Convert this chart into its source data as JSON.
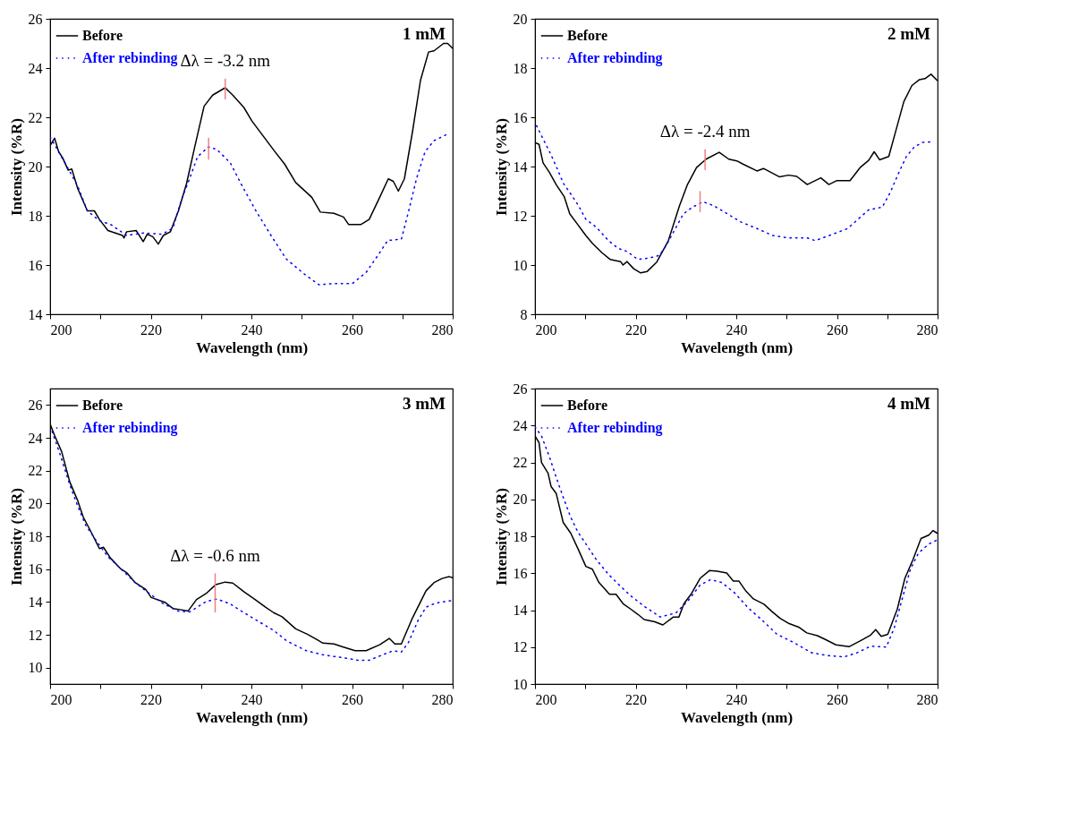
{
  "chart_data": [
    {
      "type": "line",
      "title": "1 mM",
      "xlabel": "Wavelength (nm)",
      "ylabel": "Intensity (%R)",
      "xlim": [
        200,
        280
      ],
      "ylim": [
        14,
        26
      ],
      "xticks": [
        200,
        {
          "value": 210,
          "label": null
        },
        220,
        {
          "value": 230,
          "label": null
        },
        240,
        {
          "value": 250,
          "label": null
        },
        260,
        {
          "value": 270,
          "label": null
        },
        280
      ],
      "yticks": [
        14,
        16,
        18,
        20,
        22,
        24,
        26
      ],
      "grid": false,
      "legend": "top left",
      "annotations": [
        {
          "text": "Δλ = -3.2 nm",
          "x": 234.8,
          "y": 23.55
        }
      ],
      "series": [
        {
          "name": "Before",
          "color": "#000000",
          "line_style": "solid",
          "x": [
            200,
            200.9,
            201.7,
            202.5,
            203.6,
            204.3,
            205.5,
            207.4,
            208.8,
            209.8,
            211.5,
            214.4,
            214.7,
            215.2,
            217.1,
            218.5,
            219.3,
            220.4,
            221.5,
            222.5,
            223.9,
            225.5,
            227.1,
            228.8,
            230.6,
            232.3,
            234.8,
            236.3,
            238.5,
            240.1,
            242.3,
            244.5,
            246.6,
            248.8,
            250.4,
            252.0,
            253.7,
            256.4,
            258.3,
            259.3,
            261.8,
            263.4,
            265.5,
            267.2,
            268.2,
            269.2,
            270.4,
            272.0,
            273.6,
            275.2,
            276.3,
            278.2,
            279.0,
            280
          ],
          "values": [
            20.85,
            21.15,
            20.6,
            20.35,
            19.85,
            19.9,
            19.1,
            18.2,
            18.2,
            17.85,
            17.4,
            17.2,
            17.1,
            17.35,
            17.4,
            16.95,
            17.25,
            17.15,
            16.85,
            17.2,
            17.35,
            18.2,
            19.3,
            20.85,
            22.45,
            22.9,
            23.2,
            22.9,
            22.4,
            21.85,
            21.25,
            20.65,
            20.1,
            19.35,
            19.05,
            18.75,
            18.15,
            18.1,
            17.95,
            17.65,
            17.65,
            17.85,
            18.75,
            19.5,
            19.4,
            19.0,
            19.5,
            21.4,
            23.5,
            24.65,
            24.7,
            25.0,
            25.0,
            24.8
          ]
        },
        {
          "name": "After rebinding",
          "color": "#0000ff",
          "line_style": "dotted",
          "x": [
            200,
            201.7,
            203.9,
            205.5,
            207.4,
            209.8,
            212.0,
            215.2,
            218.5,
            222.3,
            224.4,
            226.1,
            227.7,
            229.3,
            231.5,
            233.1,
            235.8,
            238.2,
            240.9,
            243.9,
            246.9,
            250.4,
            253.4,
            256.6,
            260.1,
            262.8,
            265.0,
            267.1,
            269.8,
            271.2,
            272.8,
            274.5,
            276.3,
            278.8
          ],
          "values": [
            21.2,
            20.6,
            19.8,
            19.2,
            18.2,
            17.8,
            17.65,
            17.2,
            17.3,
            17.25,
            17.5,
            18.65,
            19.5,
            20.4,
            20.8,
            20.7,
            20.15,
            19.2,
            18.2,
            17.2,
            16.25,
            15.65,
            15.2,
            15.25,
            15.25,
            15.7,
            16.35,
            17.0,
            17.05,
            18.15,
            19.5,
            20.6,
            21.05,
            21.3
          ]
        },
        {
          "color": "#f08080",
          "line_style": "solid",
          "x": [
            234.8,
            234.8
          ],
          "values": [
            22.75,
            23.55
          ]
        },
        {
          "color": "#f08080",
          "line_style": "solid",
          "x": [
            231.5,
            231.5
          ],
          "values": [
            20.3,
            21.15
          ]
        }
      ]
    },
    {
      "type": "line",
      "title": "2 mM",
      "xlabel": "Wavelength (nm)",
      "ylabel": "Intensity (%R)",
      "xlim": [
        200,
        280
      ],
      "ylim": [
        8,
        20
      ],
      "xticks": [
        200,
        {
          "value": 210,
          "label": null
        },
        220,
        {
          "value": 230,
          "label": null
        },
        240,
        {
          "value": 250,
          "label": null
        },
        260,
        {
          "value": 270,
          "label": null
        },
        280
      ],
      "yticks": [
        8,
        10,
        12,
        14,
        16,
        18,
        20
      ],
      "grid": false,
      "legend": "top left",
      "annotations": [
        {
          "text": "Δλ = -2.4 nm",
          "x": 233.8,
          "y": 14.68
        }
      ],
      "series": [
        {
          "name": "Before",
          "color": "#000000",
          "line_style": "solid",
          "x": [
            200,
            200.8,
            201.6,
            202.9,
            204.2,
            205.8,
            206.9,
            208.5,
            210.1,
            211.4,
            213.3,
            214.9,
            217.0,
            217.5,
            218.3,
            219.6,
            221.0,
            222.3,
            224.2,
            226.5,
            228.7,
            230.3,
            232.1,
            234.0,
            236.6,
            238.5,
            240.1,
            241.4,
            244.1,
            245.4,
            248.6,
            250.4,
            252.0,
            254.1,
            256.8,
            258.4,
            260.0,
            262.6,
            264.7,
            266.3,
            267.4,
            268.5,
            270.3,
            271.7,
            273.3,
            274.9,
            276.4,
            277.5,
            278.7,
            279.9
          ],
          "values": [
            14.98,
            14.9,
            14.15,
            13.75,
            13.27,
            12.78,
            12.08,
            11.64,
            11.2,
            10.88,
            10.5,
            10.23,
            10.14,
            10.0,
            10.14,
            9.85,
            9.68,
            9.74,
            10.12,
            10.99,
            12.4,
            13.27,
            13.96,
            14.3,
            14.58,
            14.3,
            14.23,
            14.09,
            13.82,
            13.92,
            13.58,
            13.65,
            13.6,
            13.27,
            13.54,
            13.27,
            13.43,
            13.43,
            13.98,
            14.25,
            14.6,
            14.27,
            14.41,
            15.45,
            16.64,
            17.29,
            17.53,
            17.57,
            17.75,
            17.5
          ]
        },
        {
          "name": "After rebinding",
          "color": "#0000ff",
          "line_style": "dotted",
          "x": [
            200.3,
            201.9,
            203.2,
            204.5,
            205.6,
            206.9,
            208.5,
            210.1,
            212.2,
            214.6,
            216.5,
            218.3,
            220.4,
            222.6,
            224.7,
            226.0,
            227.6,
            229.5,
            231.3,
            233.4,
            235.6,
            238.2,
            240.9,
            244.1,
            247.2,
            250.4,
            254.1,
            255.7,
            258.9,
            262.1,
            264.2,
            266.3,
            269.0,
            270.6,
            272.2,
            273.8,
            275.4,
            277.0,
            278.6
          ],
          "values": [
            15.66,
            15.0,
            14.47,
            13.87,
            13.33,
            12.95,
            12.46,
            11.86,
            11.53,
            10.99,
            10.68,
            10.55,
            10.23,
            10.28,
            10.39,
            10.77,
            11.37,
            12.08,
            12.35,
            12.57,
            12.4,
            12.08,
            11.75,
            11.48,
            11.2,
            11.1,
            11.1,
            10.99,
            11.23,
            11.48,
            11.86,
            12.24,
            12.35,
            12.95,
            13.71,
            14.41,
            14.8,
            14.98,
            15.0
          ]
        },
        {
          "color": "#f08080",
          "line_style": "solid",
          "x": [
            233.8,
            233.8
          ],
          "values": [
            13.87,
            14.68
          ]
        },
        {
          "color": "#f08080",
          "line_style": "solid",
          "x": [
            232.8,
            232.8
          ],
          "values": [
            12.16,
            12.98
          ]
        }
      ]
    },
    {
      "type": "line",
      "title": "3 mM",
      "xlabel": "Wavelength (nm)",
      "ylabel": "Intensity (%R)",
      "xlim": [
        200,
        280
      ],
      "ylim": [
        9,
        27
      ],
      "xticks": [
        200,
        {
          "value": 210,
          "label": null
        },
        220,
        {
          "value": 230,
          "label": null
        },
        240,
        {
          "value": 250,
          "label": null
        },
        260,
        {
          "value": 270,
          "label": null
        },
        280
      ],
      "yticks": [
        10,
        12,
        14,
        16,
        18,
        20,
        22,
        24,
        26
      ],
      "grid": false,
      "legend": "top left",
      "annotations": [
        {
          "text": "Δλ = -0.6 nm",
          "x": 232.8,
          "y": 15.71
        }
      ],
      "series": [
        {
          "name": "Before",
          "color": "#000000",
          "line_style": "solid",
          "x": [
            200,
            200.9,
            202.3,
            203.9,
            205.5,
            206.6,
            207.9,
            209.8,
            210.6,
            212.0,
            214.1,
            215.2,
            216.9,
            219.0,
            220.1,
            222.8,
            224.4,
            226.1,
            227.4,
            229.1,
            231.0,
            232.9,
            234.8,
            236.3,
            238.5,
            240.6,
            242.8,
            244.4,
            246.1,
            248.8,
            251.2,
            253.1,
            254.2,
            256.4,
            258.0,
            260.6,
            262.8,
            265.5,
            267.4,
            268.5,
            269.8,
            272.0,
            274.7,
            276.3,
            277.9,
            279.3,
            280
          ],
          "values": [
            24.84,
            24.14,
            23.15,
            21.32,
            20.16,
            19.16,
            18.41,
            17.25,
            17.33,
            16.67,
            16.0,
            15.79,
            15.18,
            14.76,
            14.27,
            13.98,
            13.6,
            13.52,
            13.44,
            14.15,
            14.51,
            15.05,
            15.21,
            15.15,
            14.63,
            14.18,
            13.68,
            13.35,
            13.1,
            12.36,
            12.02,
            11.69,
            11.49,
            11.44,
            11.28,
            11.03,
            11.03,
            11.39,
            11.78,
            11.44,
            11.44,
            13.02,
            14.68,
            15.18,
            15.43,
            15.54,
            15.48
          ]
        },
        {
          "name": "After rebinding",
          "color": "#0000ff",
          "line_style": "dotted",
          "x": [
            200.4,
            202.0,
            203.9,
            205.5,
            207.1,
            209.3,
            211.5,
            214.1,
            216.9,
            219.0,
            222.3,
            225.5,
            227.7,
            231.0,
            233.1,
            235.8,
            238.5,
            241.2,
            244.4,
            247.1,
            250.9,
            254.2,
            258.0,
            261.2,
            263.4,
            266.1,
            268.2,
            269.8,
            271.2,
            273.1,
            274.7,
            276.6,
            279.0,
            280
          ],
          "values": [
            24.39,
            22.98,
            21.15,
            19.83,
            18.66,
            17.67,
            16.76,
            16.0,
            15.18,
            14.68,
            13.93,
            13.44,
            13.39,
            14.02,
            14.18,
            13.88,
            13.35,
            12.85,
            12.27,
            11.61,
            11.03,
            10.78,
            10.61,
            10.45,
            10.45,
            10.78,
            11.03,
            10.95,
            11.53,
            12.86,
            13.68,
            13.93,
            14.05,
            14.1
          ]
        },
        {
          "color": "#f08080",
          "line_style": "solid",
          "x": [
            232.8,
            232.8
          ],
          "values": [
            13.39,
            15.71
          ]
        }
      ]
    },
    {
      "type": "line",
      "title": "4 mM",
      "xlabel": "Wavelength (nm)",
      "ylabel": "Intensity (%R)",
      "xlim": [
        200,
        280
      ],
      "ylim": [
        10,
        26
      ],
      "xticks": [
        200,
        {
          "value": 210,
          "label": null
        },
        220,
        {
          "value": 230,
          "label": null
        },
        240,
        {
          "value": 250,
          "label": null
        },
        260,
        {
          "value": 270,
          "label": null
        },
        280
      ],
      "yticks": [
        10,
        12,
        14,
        16,
        18,
        20,
        22,
        24,
        26
      ],
      "grid": false,
      "legend": "top left",
      "series": [
        {
          "name": "Before",
          "color": "#000000",
          "line_style": "solid",
          "x": [
            200,
            200.8,
            201.3,
            202.6,
            203.2,
            204.2,
            205.6,
            207.1,
            208.7,
            210.1,
            211.4,
            212.7,
            214.8,
            216.1,
            217.5,
            219.0,
            220.4,
            221.7,
            223.8,
            225.4,
            227.5,
            228.6,
            229.6,
            231.0,
            232.8,
            234.7,
            236.2,
            238.1,
            239.4,
            240.5,
            241.8,
            243.4,
            245.5,
            247.1,
            248.7,
            250.5,
            252.4,
            254.0,
            256.1,
            257.7,
            259.8,
            262.4,
            264.6,
            266.7,
            267.7,
            268.8,
            270.1,
            272.0,
            273.5,
            275.1,
            276.7,
            278.3,
            279.1,
            279.9
          ],
          "values": [
            23.43,
            23.07,
            21.99,
            21.41,
            20.69,
            20.33,
            18.75,
            18.17,
            17.23,
            16.37,
            16.22,
            15.5,
            14.86,
            14.86,
            14.35,
            14.06,
            13.78,
            13.49,
            13.37,
            13.2,
            13.63,
            13.63,
            14.35,
            14.86,
            15.72,
            16.15,
            16.11,
            16.01,
            15.58,
            15.58,
            15.07,
            14.61,
            14.32,
            13.92,
            13.56,
            13.27,
            13.08,
            12.77,
            12.62,
            12.41,
            12.12,
            12.02,
            12.33,
            12.65,
            12.95,
            12.58,
            12.69,
            14.06,
            15.72,
            16.73,
            17.88,
            18.07,
            18.31,
            18.17
          ]
        },
        {
          "name": "After rebinding",
          "color": "#0000ff",
          "line_style": "dotted",
          "x": [
            200,
            201.3,
            202.9,
            204.2,
            205.6,
            207.1,
            208.5,
            210.1,
            212.2,
            214.6,
            217.0,
            219.0,
            221.7,
            224.9,
            228.0,
            230.4,
            232.8,
            234.9,
            237.1,
            239.7,
            242.3,
            245.0,
            248.1,
            251.3,
            255.0,
            258.2,
            261.4,
            264.0,
            266.7,
            269.8,
            271.4,
            273.0,
            274.6,
            276.2,
            278.3,
            280
          ],
          "values": [
            23.93,
            23.43,
            22.28,
            21.2,
            20.12,
            19.03,
            18.24,
            17.59,
            16.73,
            15.94,
            15.29,
            14.78,
            14.21,
            13.63,
            13.85,
            14.5,
            15.36,
            15.65,
            15.5,
            14.93,
            14.14,
            13.49,
            12.69,
            12.26,
            11.69,
            11.54,
            11.47,
            11.69,
            12.05,
            12.0,
            13.05,
            14.64,
            16.22,
            17.09,
            17.59,
            17.81
          ]
        }
      ]
    }
  ]
}
